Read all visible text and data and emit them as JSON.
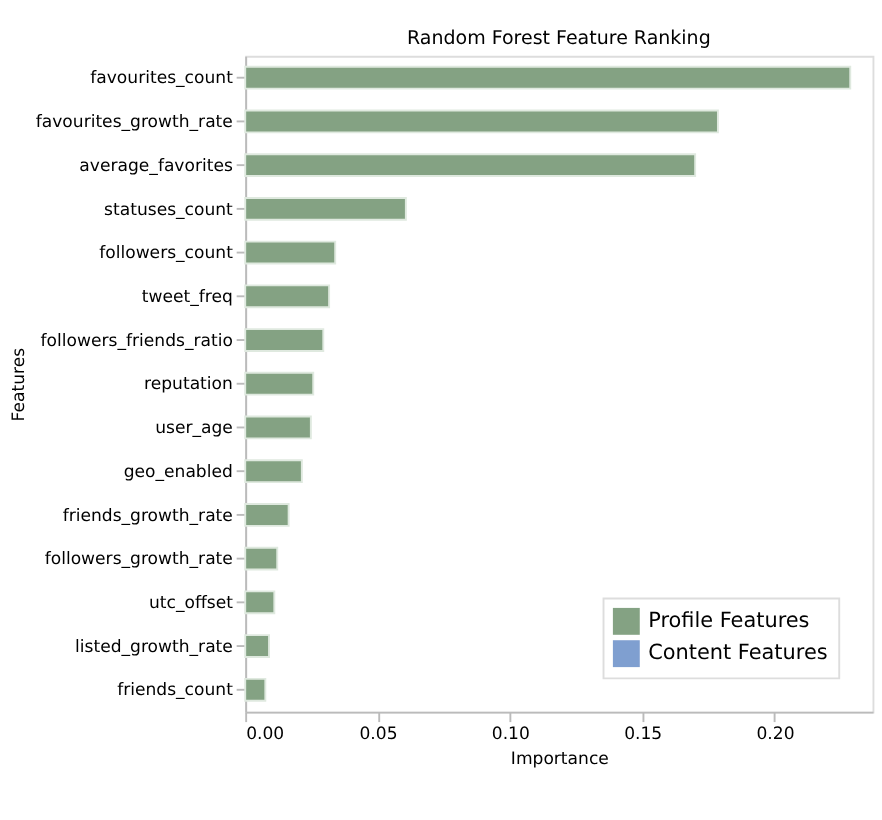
{
  "chart_data": {
    "type": "bar",
    "orientation": "horizontal",
    "title": "Random Forest Feature Ranking",
    "xlabel": "Importance",
    "ylabel": "Features",
    "categories": [
      "favourites_count",
      "favourites_growth_rate",
      "average_favorites",
      "statuses_count",
      "followers_count",
      "tweet_freq",
      "followers_friends_ratio",
      "reputation",
      "user_age",
      "geo_enabled",
      "friends_growth_rate",
      "followers_growth_rate",
      "utc_offset",
      "listed_growth_rate",
      "friends_count"
    ],
    "series": [
      {
        "name": "Profile Features",
        "color": "#84a283",
        "values": [
          0.2286,
          0.1786,
          0.17,
          0.0607,
          0.034,
          0.0317,
          0.0295,
          0.0257,
          0.0248,
          0.0214,
          0.0164,
          0.0121,
          0.011,
          0.009,
          0.0076
        ]
      },
      {
        "name": "Content Features",
        "color": "#7f9fd0",
        "values": [
          null,
          null,
          null,
          null,
          null,
          null,
          null,
          null,
          null,
          null,
          null,
          null,
          null,
          null,
          null
        ]
      }
    ],
    "xlim": [
      0,
      0.237
    ],
    "xticks": [
      {
        "value": 0,
        "label": "0.00"
      },
      {
        "value": 0.05,
        "label": "0.05"
      },
      {
        "value": 0.1,
        "label": "0.10"
      },
      {
        "value": 0.15,
        "label": "0.15"
      },
      {
        "value": 0.2,
        "label": "0.20"
      }
    ],
    "grid": false,
    "legend": "bottom right"
  }
}
